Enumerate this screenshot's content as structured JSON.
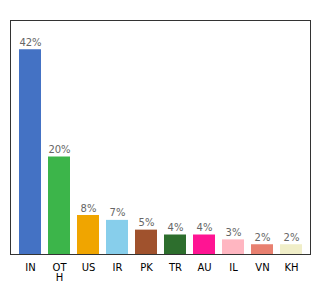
{
  "chart_data": {
    "type": "bar",
    "categories": [
      "IN",
      "OT\nH",
      "US",
      "IR",
      "PK",
      "TR",
      "AU",
      "IL",
      "VN",
      "KH"
    ],
    "values": [
      42,
      20,
      8,
      7,
      5,
      4,
      4,
      3,
      2,
      2
    ],
    "value_labels": [
      "42%",
      "20%",
      "8%",
      "7%",
      "5%",
      "4%",
      "4%",
      "3%",
      "2%",
      "2%"
    ],
    "colors": [
      "#4472c4",
      "#3cb54a",
      "#f0a500",
      "#87ceeb",
      "#a0522d",
      "#2d6e2d",
      "#ff1493",
      "#ffb6c1",
      "#e88070",
      "#f0eec8"
    ],
    "ylim": [
      0,
      48
    ],
    "data_labels": true,
    "tick_labels": "x",
    "grid": false
  }
}
